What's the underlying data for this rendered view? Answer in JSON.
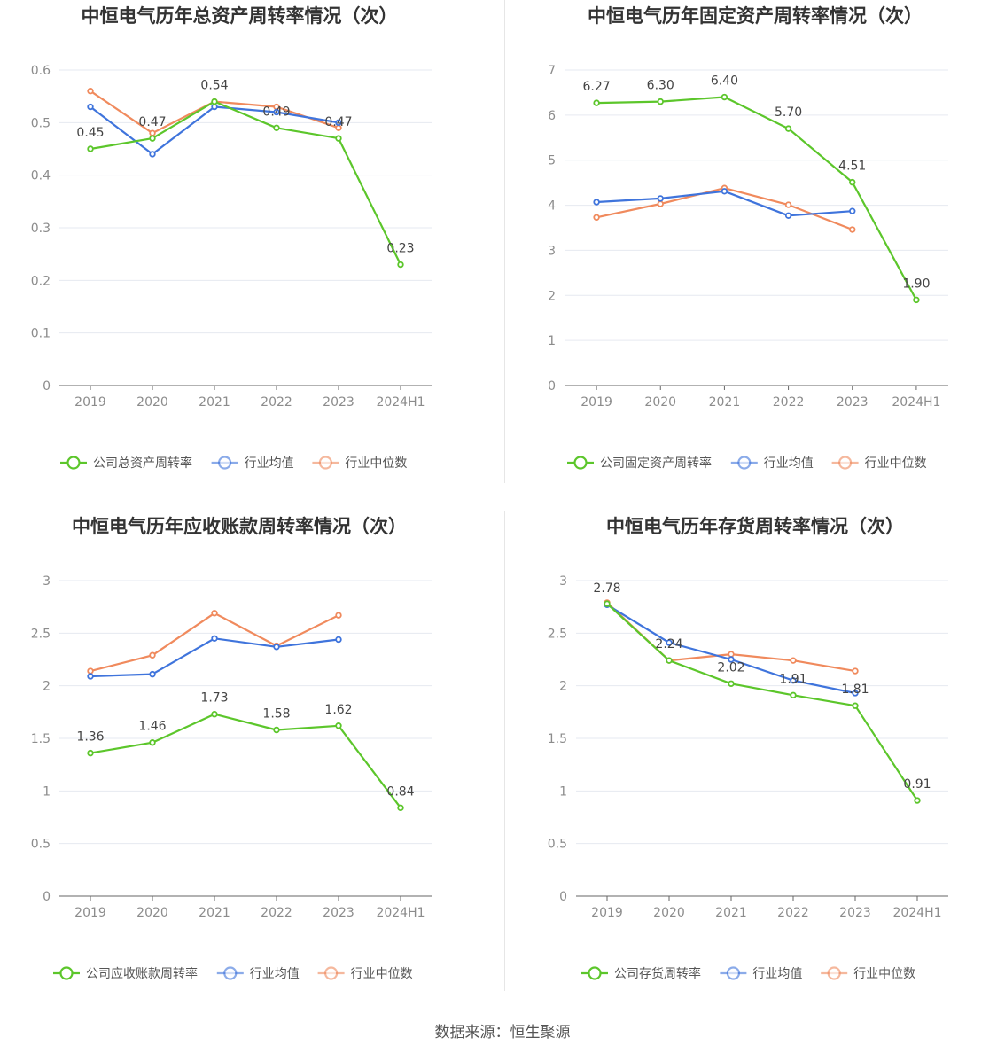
{
  "source": "数据来源：恒生聚源",
  "colors": {
    "company": "#5cc62b",
    "average": "#3f74dc",
    "median": "#f08a5d",
    "grid": "#e6e9f0",
    "axis": "#666666"
  },
  "chart_data": [
    {
      "type": "line",
      "title": "中恒电气历年总资产周转率情况（次）",
      "categories": [
        "2019",
        "2020",
        "2021",
        "2022",
        "2023",
        "2024H1"
      ],
      "ylim": [
        0,
        0.6
      ],
      "yticks": [
        "0",
        "0.1",
        "0.2",
        "0.3",
        "0.4",
        "0.5",
        "0.6"
      ],
      "legend_position": "bottom",
      "series": [
        {
          "name": "公司总资产周转率",
          "role": "company",
          "values": [
            0.45,
            0.47,
            0.54,
            0.49,
            0.47,
            0.23
          ],
          "labels": [
            "0.45",
            "0.47",
            "0.54",
            "0.49",
            "0.47",
            "0.23"
          ]
        },
        {
          "name": "行业均值",
          "role": "average",
          "values": [
            0.53,
            0.44,
            0.53,
            0.52,
            0.5,
            null
          ]
        },
        {
          "name": "行业中位数",
          "role": "median",
          "values": [
            0.56,
            0.48,
            0.54,
            0.53,
            0.49,
            null
          ]
        }
      ]
    },
    {
      "type": "line",
      "title": "中恒电气历年固定资产周转率情况（次）",
      "categories": [
        "2019",
        "2020",
        "2021",
        "2022",
        "2023",
        "2024H1"
      ],
      "ylim": [
        0,
        7
      ],
      "yticks": [
        "0",
        "1",
        "2",
        "3",
        "4",
        "5",
        "6",
        "7"
      ],
      "legend_position": "bottom",
      "series": [
        {
          "name": "公司固定资产周转率",
          "role": "company",
          "values": [
            6.27,
            6.3,
            6.4,
            5.7,
            4.51,
            1.9
          ],
          "labels": [
            "6.27",
            "6.30",
            "6.40",
            "5.70",
            "4.51",
            "1.90"
          ]
        },
        {
          "name": "行业均值",
          "role": "average",
          "values": [
            4.07,
            4.15,
            4.31,
            3.77,
            3.87,
            null
          ]
        },
        {
          "name": "行业中位数",
          "role": "median",
          "values": [
            3.73,
            4.03,
            4.38,
            4.01,
            3.46,
            null
          ]
        }
      ]
    },
    {
      "type": "line",
      "title": "中恒电气历年应收账款周转率情况（次）",
      "categories": [
        "2019",
        "2020",
        "2021",
        "2022",
        "2023",
        "2024H1"
      ],
      "ylim": [
        0,
        3
      ],
      "yticks": [
        "0",
        "0.5",
        "1",
        "1.5",
        "2",
        "2.5",
        "3"
      ],
      "legend_position": "bottom",
      "series": [
        {
          "name": "公司应收账款周转率",
          "role": "company",
          "values": [
            1.36,
            1.46,
            1.73,
            1.58,
            1.62,
            0.84
          ],
          "labels": [
            "1.36",
            "1.46",
            "1.73",
            "1.58",
            "1.62",
            "0.84"
          ]
        },
        {
          "name": "行业均值",
          "role": "average",
          "values": [
            2.09,
            2.11,
            2.45,
            2.37,
            2.44,
            null
          ]
        },
        {
          "name": "行业中位数",
          "role": "median",
          "values": [
            2.14,
            2.29,
            2.69,
            2.38,
            2.67,
            null
          ]
        }
      ]
    },
    {
      "type": "line",
      "title": "中恒电气历年存货周转率情况（次）",
      "categories": [
        "2019",
        "2020",
        "2021",
        "2022",
        "2023",
        "2024H1"
      ],
      "ylim": [
        0,
        3
      ],
      "yticks": [
        "0",
        "0.5",
        "1",
        "1.5",
        "2",
        "2.5",
        "3"
      ],
      "legend_position": "bottom",
      "series": [
        {
          "name": "公司存货周转率",
          "role": "company",
          "values": [
            2.78,
            2.24,
            2.02,
            1.91,
            1.81,
            0.91
          ],
          "labels": [
            "2.78",
            "2.24",
            "2.02",
            "1.91",
            "1.81",
            "0.91"
          ]
        },
        {
          "name": "行业均值",
          "role": "average",
          "values": [
            2.77,
            2.41,
            2.25,
            2.05,
            1.93,
            null
          ]
        },
        {
          "name": "行业中位数",
          "role": "median",
          "values": [
            2.79,
            2.24,
            2.3,
            2.24,
            2.14,
            null
          ]
        }
      ]
    }
  ]
}
